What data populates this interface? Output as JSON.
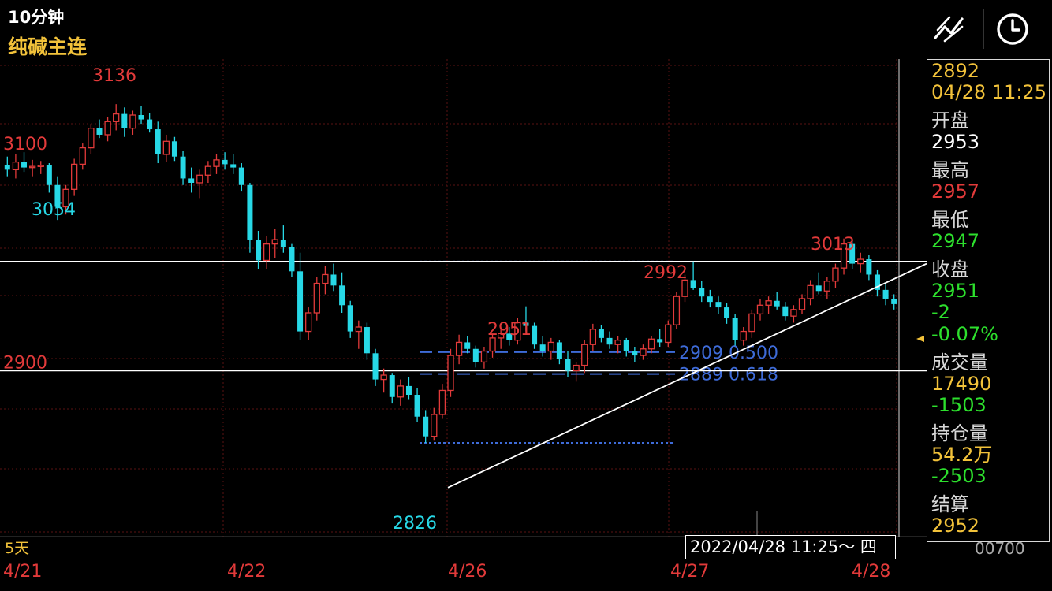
{
  "header": {
    "period_label": "10分钟",
    "symbol": "纯碱主连",
    "draw_tool_icon": "trendline-draw-icon",
    "time_icon": "clock-icon"
  },
  "info_panel": {
    "price": "2892",
    "datetime": "04/28 11:25",
    "open_label": "开盘",
    "open": "2953",
    "high_label": "最高",
    "high": "2957",
    "low_label": "最低",
    "low": "2947",
    "close_label": "收盘",
    "close": "2951",
    "change": "-2",
    "change_pct": "-0.07%",
    "volume_label": "成交量",
    "volume": "17490",
    "volume_change": "-1503",
    "oi_label": "持仓量",
    "oi": "54.2万",
    "oi_change": "-2503",
    "settle_label": "结算",
    "settle": "2952"
  },
  "footer": {
    "period_days": "5天",
    "cursor_time": "2022/04/28 11:25～ 四",
    "corner_value": "00700"
  },
  "colors": {
    "up": "#e23a3a",
    "down": "#27d8e6",
    "grid": "#5a1212",
    "fib": "#3e6bd8",
    "highlight": "#f2c23a",
    "neutral": "#ffffff",
    "green": "#2de02d"
  },
  "chart_data": {
    "type": "candlestick",
    "x_labels": [
      "4/21",
      "4/22",
      "4/26",
      "4/27",
      "4/28"
    ],
    "y_tick_labels": [
      3100,
      2900
    ],
    "ylim": [
      2795,
      3170
    ],
    "grid": true,
    "annotations": [
      {
        "text": "3136",
        "value": 3136,
        "kind": "high"
      },
      {
        "text": "3054",
        "value": 3054,
        "kind": "low"
      },
      {
        "text": "2951",
        "value": 2951,
        "kind": "high"
      },
      {
        "text": "2992",
        "value": 2992,
        "kind": "high"
      },
      {
        "text": "2826",
        "value": 2826,
        "kind": "low"
      },
      {
        "text": "3013",
        "value": 3013,
        "kind": "high"
      }
    ],
    "horizontal_lines": [
      2992,
      2892
    ],
    "fibonacci": [
      {
        "text": "2909 0.500",
        "value": 2909
      },
      {
        "text": "2889 0.618",
        "value": 2889
      }
    ],
    "series": [
      {
        "name": "",
        "ohlc": [
          [
            3080,
            3088,
            3070,
            3076
          ],
          [
            3076,
            3090,
            3068,
            3083
          ],
          [
            3083,
            3092,
            3074,
            3078
          ],
          [
            3078,
            3085,
            3070,
            3079
          ],
          [
            3079,
            3084,
            3072,
            3080
          ],
          [
            3080,
            3082,
            3055,
            3062
          ],
          [
            3062,
            3070,
            3030,
            3042
          ],
          [
            3042,
            3062,
            3035,
            3058
          ],
          [
            3058,
            3086,
            3052,
            3081
          ],
          [
            3081,
            3100,
            3076,
            3096
          ],
          [
            3096,
            3118,
            3090,
            3114
          ],
          [
            3114,
            3122,
            3105,
            3108
          ],
          [
            3108,
            3124,
            3102,
            3120
          ],
          [
            3120,
            3136,
            3112,
            3127
          ],
          [
            3127,
            3133,
            3106,
            3114
          ],
          [
            3114,
            3130,
            3108,
            3126
          ],
          [
            3126,
            3134,
            3118,
            3122
          ],
          [
            3122,
            3128,
            3110,
            3113
          ],
          [
            3113,
            3120,
            3082,
            3090
          ],
          [
            3090,
            3108,
            3083,
            3102
          ],
          [
            3102,
            3106,
            3084,
            3088
          ],
          [
            3088,
            3093,
            3062,
            3068
          ],
          [
            3068,
            3078,
            3055,
            3064
          ],
          [
            3064,
            3076,
            3050,
            3071
          ],
          [
            3071,
            3084,
            3064,
            3079
          ],
          [
            3079,
            3090,
            3072,
            3085
          ],
          [
            3085,
            3092,
            3076,
            3081
          ],
          [
            3081,
            3090,
            3072,
            3078
          ],
          [
            3078,
            3082,
            3056,
            3062
          ],
          [
            3062,
            3064,
            3000,
            3012
          ],
          [
            3012,
            3020,
            2985,
            2993
          ],
          [
            2993,
            3015,
            2985,
            3008
          ],
          [
            3008,
            3022,
            2995,
            3012
          ],
          [
            3012,
            3025,
            3000,
            3005
          ],
          [
            3005,
            3008,
            2978,
            2983
          ],
          [
            2983,
            3000,
            2920,
            2928
          ],
          [
            2928,
            2950,
            2920,
            2945
          ],
          [
            2945,
            2978,
            2938,
            2972
          ],
          [
            2972,
            2988,
            2962,
            2980
          ],
          [
            2980,
            2990,
            2965,
            2970
          ],
          [
            2970,
            2982,
            2945,
            2952
          ],
          [
            2952,
            2956,
            2922,
            2928
          ],
          [
            2928,
            2938,
            2912,
            2932
          ],
          [
            2932,
            2936,
            2902,
            2908
          ],
          [
            2908,
            2912,
            2878,
            2884
          ],
          [
            2884,
            2894,
            2872,
            2888
          ],
          [
            2888,
            2890,
            2862,
            2868
          ],
          [
            2868,
            2884,
            2860,
            2878
          ],
          [
            2878,
            2886,
            2866,
            2870
          ],
          [
            2870,
            2876,
            2845,
            2850
          ],
          [
            2850,
            2856,
            2826,
            2832
          ],
          [
            2832,
            2858,
            2828,
            2852
          ],
          [
            2852,
            2880,
            2848,
            2874
          ],
          [
            2874,
            2912,
            2868,
            2906
          ],
          [
            2906,
            2925,
            2898,
            2918
          ],
          [
            2918,
            2924,
            2908,
            2912
          ],
          [
            2912,
            2915,
            2895,
            2900
          ],
          [
            2900,
            2914,
            2894,
            2910
          ],
          [
            2910,
            2925,
            2904,
            2922
          ],
          [
            2922,
            2930,
            2912,
            2926
          ],
          [
            2926,
            2932,
            2915,
            2920
          ],
          [
            2920,
            2940,
            2916,
            2936
          ],
          [
            2936,
            2951,
            2928,
            2933
          ],
          [
            2933,
            2936,
            2912,
            2916
          ],
          [
            2916,
            2924,
            2905,
            2910
          ],
          [
            2910,
            2922,
            2902,
            2918
          ],
          [
            2918,
            2920,
            2898,
            2903
          ],
          [
            2903,
            2910,
            2886,
            2892
          ],
          [
            2892,
            2900,
            2882,
            2897
          ],
          [
            2897,
            2920,
            2890,
            2916
          ],
          [
            2916,
            2935,
            2910,
            2930
          ],
          [
            2930,
            2934,
            2918,
            2922
          ],
          [
            2922,
            2928,
            2912,
            2916
          ],
          [
            2916,
            2924,
            2908,
            2920
          ],
          [
            2920,
            2922,
            2905,
            2910
          ],
          [
            2910,
            2914,
            2900,
            2906
          ],
          [
            2906,
            2916,
            2902,
            2912
          ],
          [
            2912,
            2924,
            2908,
            2921
          ],
          [
            2921,
            2930,
            2914,
            2918
          ],
          [
            2918,
            2938,
            2914,
            2934
          ],
          [
            2934,
            2964,
            2930,
            2960
          ],
          [
            2960,
            2980,
            2955,
            2975
          ],
          [
            2975,
            2992,
            2966,
            2968
          ],
          [
            2968,
            2974,
            2955,
            2960
          ],
          [
            2960,
            2966,
            2950,
            2955
          ],
          [
            2955,
            2960,
            2944,
            2950
          ],
          [
            2950,
            2954,
            2935,
            2940
          ],
          [
            2940,
            2944,
            2915,
            2920
          ],
          [
            2920,
            2932,
            2915,
            2928
          ],
          [
            2928,
            2948,
            2922,
            2944
          ],
          [
            2944,
            2958,
            2938,
            2952
          ],
          [
            2952,
            2960,
            2944,
            2956
          ],
          [
            2956,
            2964,
            2948,
            2951
          ],
          [
            2951,
            2955,
            2938,
            2942
          ],
          [
            2942,
            2952,
            2936,
            2948
          ],
          [
            2948,
            2962,
            2944,
            2958
          ],
          [
            2958,
            2975,
            2952,
            2970
          ],
          [
            2970,
            2982,
            2962,
            2965
          ],
          [
            2965,
            2978,
            2958,
            2974
          ],
          [
            2974,
            2990,
            2968,
            2986
          ],
          [
            2986,
            3013,
            2980,
            3008
          ],
          [
            3008,
            3012,
            2985,
            2990
          ],
          [
            2990,
            3000,
            2982,
            2994
          ],
          [
            2994,
            2998,
            2975,
            2980
          ],
          [
            2980,
            2984,
            2960,
            2966
          ],
          [
            2966,
            2972,
            2952,
            2958
          ],
          [
            2958,
            2962,
            2948,
            2953
          ]
        ]
      }
    ]
  }
}
